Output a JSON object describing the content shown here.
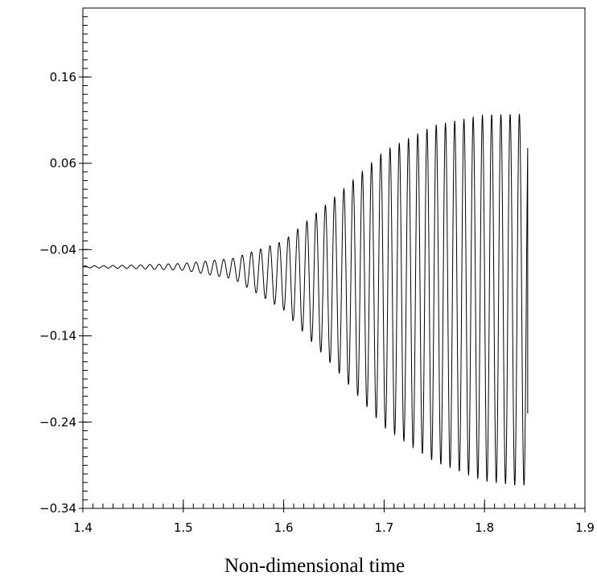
{
  "chart_data": {
    "type": "line",
    "title": "",
    "xlabel": "Non-dimensional time",
    "ylabel": "",
    "xlim": [
      1.4,
      1.9
    ],
    "ylim": [
      -0.34,
      0.24
    ],
    "x_ticks": [
      1.4,
      1.5,
      1.6,
      1.7,
      1.8,
      1.9
    ],
    "x_tick_labels": [
      "1.4",
      "1.5",
      "1.6",
      "1.7",
      "1.8",
      "1.9"
    ],
    "y_ticks": [
      -0.34,
      -0.24,
      -0.14,
      -0.04,
      0.06,
      0.16
    ],
    "y_tick_labels": [
      "−0.34",
      "−0.24",
      "−0.14",
      "−0.04",
      "0.06",
      "0.16"
    ],
    "grid": false,
    "legend": "none",
    "line_color": "#000000",
    "series": [
      {
        "x": [
          1.4,
          1.45,
          1.5,
          1.55,
          1.6,
          1.65,
          1.7,
          1.75,
          1.8,
          1.83,
          1.843
        ],
        "baseline": [
          -0.06,
          -0.06,
          -0.06,
          -0.062,
          -0.07,
          -0.078,
          -0.086,
          -0.091,
          -0.096,
          -0.098,
          -0.098
        ],
        "amplitude": [
          0.001,
          0.002,
          0.004,
          0.012,
          0.04,
          0.098,
          0.16,
          0.195,
          0.212,
          0.215,
          0.215
        ],
        "period": 0.0092,
        "end": {
          "x": 1.843,
          "y": -0.23
        }
      }
    ]
  }
}
